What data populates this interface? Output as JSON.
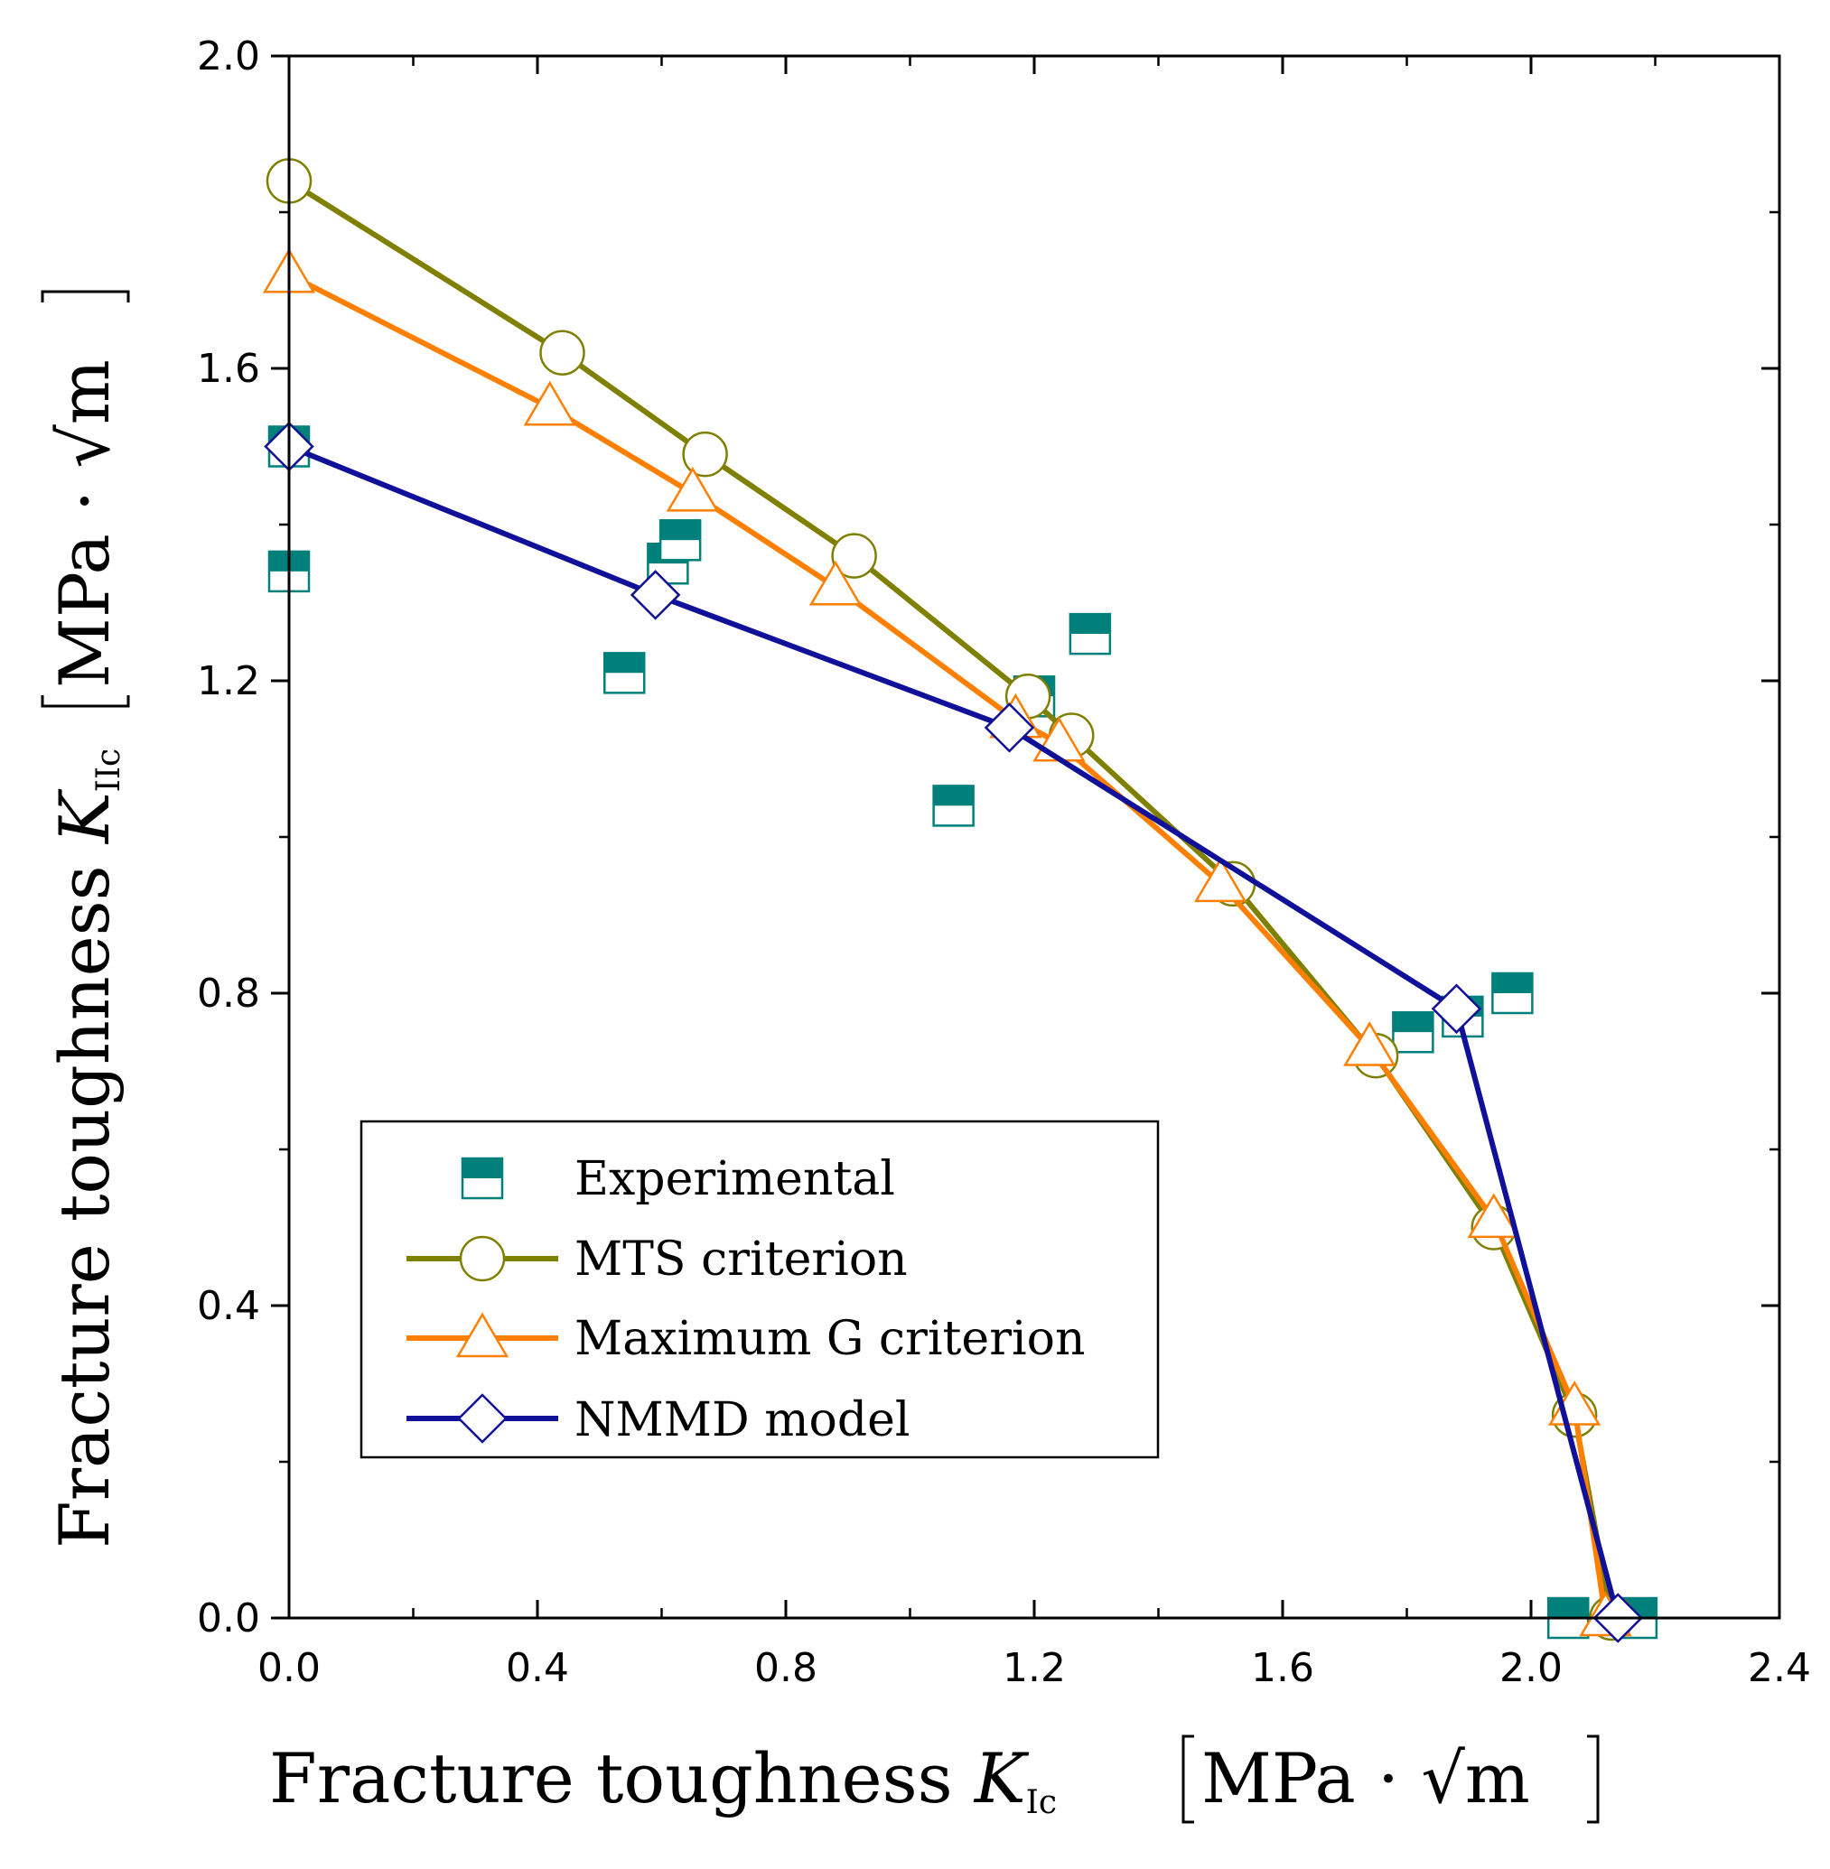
{
  "chart_data": {
    "type": "scatter",
    "xlabel": {
      "prefix": "Fracture toughness ",
      "symbol": "K",
      "subscript": "Ic",
      "unit": "MPa · √m"
    },
    "ylabel": {
      "prefix": "Fracture toughness ",
      "symbol": "K",
      "subscript": "IIc",
      "unit": "MPa · √m"
    },
    "xlim": [
      0.0,
      2.4
    ],
    "ylim": [
      0.0,
      2.0
    ],
    "x_ticks": [
      "0.0",
      "0.4",
      "0.8",
      "1.2",
      "1.6",
      "2.0",
      "2.4"
    ],
    "y_ticks": [
      "0.0",
      "0.4",
      "0.8",
      "1.2",
      "1.6",
      "2.0"
    ],
    "grid": false,
    "legend_position": "lower-left",
    "series": [
      {
        "name": "Experimental",
        "kind": "markers",
        "marker": "half-filled-square",
        "color": "#00807a",
        "points": [
          [
            0.0,
            1.5
          ],
          [
            0.0,
            1.34
          ],
          [
            0.54,
            1.21
          ],
          [
            0.61,
            1.35
          ],
          [
            0.63,
            1.38
          ],
          [
            1.07,
            1.04
          ],
          [
            1.2,
            1.18
          ],
          [
            1.29,
            1.26
          ],
          [
            1.81,
            0.75
          ],
          [
            1.89,
            0.77
          ],
          [
            1.97,
            0.8
          ],
          [
            2.06,
            0.0
          ],
          [
            2.17,
            0.0
          ]
        ]
      },
      {
        "name": "MTS criterion",
        "kind": "line-markers",
        "marker": "circle",
        "color": "#808000",
        "points": [
          [
            0.0,
            1.84
          ],
          [
            0.44,
            1.62
          ],
          [
            0.67,
            1.49
          ],
          [
            0.91,
            1.36
          ],
          [
            1.19,
            1.18
          ],
          [
            1.26,
            1.13
          ],
          [
            1.52,
            0.94
          ],
          [
            1.75,
            0.72
          ],
          [
            1.94,
            0.5
          ],
          [
            2.07,
            0.26
          ],
          [
            2.13,
            0.0
          ]
        ]
      },
      {
        "name": "Maximum G criterion",
        "kind": "line-markers",
        "marker": "triangle",
        "color": "#ff8000",
        "points": [
          [
            0.0,
            1.72
          ],
          [
            0.42,
            1.55
          ],
          [
            0.65,
            1.44
          ],
          [
            0.88,
            1.32
          ],
          [
            1.17,
            1.15
          ],
          [
            1.24,
            1.12
          ],
          [
            1.5,
            0.94
          ],
          [
            1.74,
            0.73
          ],
          [
            1.94,
            0.51
          ],
          [
            2.07,
            0.27
          ],
          [
            2.12,
            0.0
          ]
        ]
      },
      {
        "name": "NMMD model",
        "kind": "line-markers",
        "marker": "diamond",
        "color": "#101098",
        "points": [
          [
            0.0,
            1.5
          ],
          [
            0.59,
            1.31
          ],
          [
            1.16,
            1.14
          ],
          [
            1.88,
            0.78
          ],
          [
            2.14,
            0.0
          ]
        ]
      }
    ]
  }
}
